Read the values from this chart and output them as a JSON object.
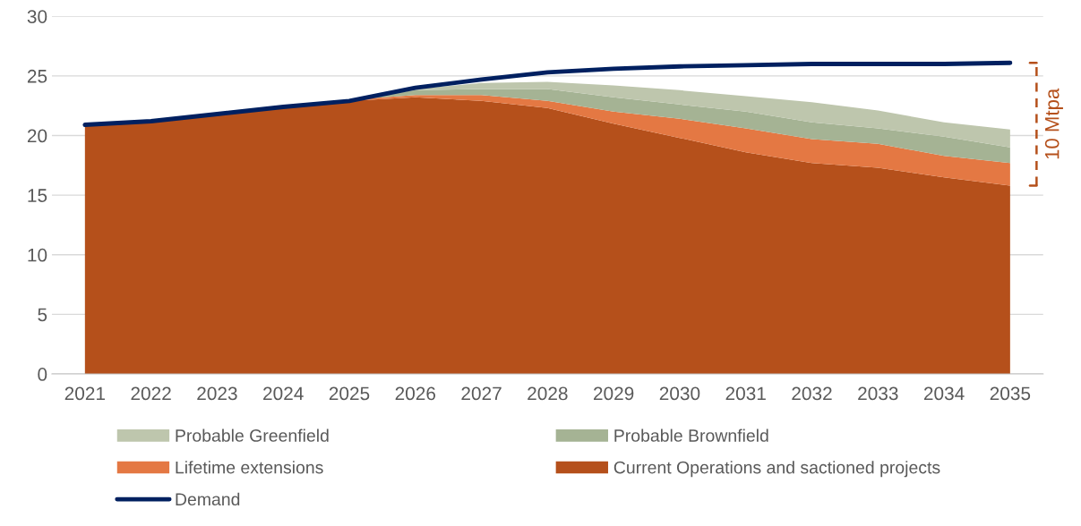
{
  "chart_data": {
    "type": "area",
    "stacked": true,
    "categories": [
      "2021",
      "2022",
      "2023",
      "2024",
      "2025",
      "2026",
      "2027",
      "2028",
      "2029",
      "2030",
      "2031",
      "2032",
      "2033",
      "2034",
      "2035"
    ],
    "series": [
      {
        "name": "Current Operations and sactioned projects",
        "color": "#b5501b",
        "values": [
          20.8,
          21.2,
          21.7,
          22.3,
          22.9,
          23.2,
          22.9,
          22.3,
          21.0,
          19.8,
          18.6,
          17.7,
          17.3,
          16.5,
          15.8
        ]
      },
      {
        "name": "Lifetime extensions",
        "color": "#e47843",
        "values": [
          0,
          0,
          0,
          0,
          0.1,
          0.2,
          0.5,
          0.6,
          1.0,
          1.6,
          2.0,
          2.0,
          2.0,
          1.8,
          1.9
        ]
      },
      {
        "name": "Probable Brownfield",
        "color": "#a5b394",
        "values": [
          0,
          0,
          0,
          0,
          0,
          0.4,
          0.5,
          1.0,
          1.2,
          1.2,
          1.4,
          1.4,
          1.3,
          1.6,
          1.3
        ]
      },
      {
        "name": "Probable Greenfield",
        "color": "#bec6ad",
        "values": [
          0,
          0,
          0,
          0,
          0,
          0.1,
          0.5,
          0.6,
          1.0,
          1.2,
          1.3,
          1.7,
          1.5,
          1.2,
          1.5
        ]
      },
      {
        "name": "Demand",
        "type": "line",
        "color": "#002060",
        "values": [
          20.9,
          21.2,
          21.8,
          22.4,
          22.9,
          24.0,
          24.7,
          25.3,
          25.6,
          25.8,
          25.9,
          26.0,
          26.0,
          26.0,
          26.1
        ]
      }
    ],
    "ylim": [
      0,
      30
    ],
    "yticks": [
      0,
      5,
      10,
      15,
      20,
      25,
      30
    ],
    "grid": "y",
    "legend": "bottom",
    "annotations": [
      "10 Mtpa"
    ]
  }
}
